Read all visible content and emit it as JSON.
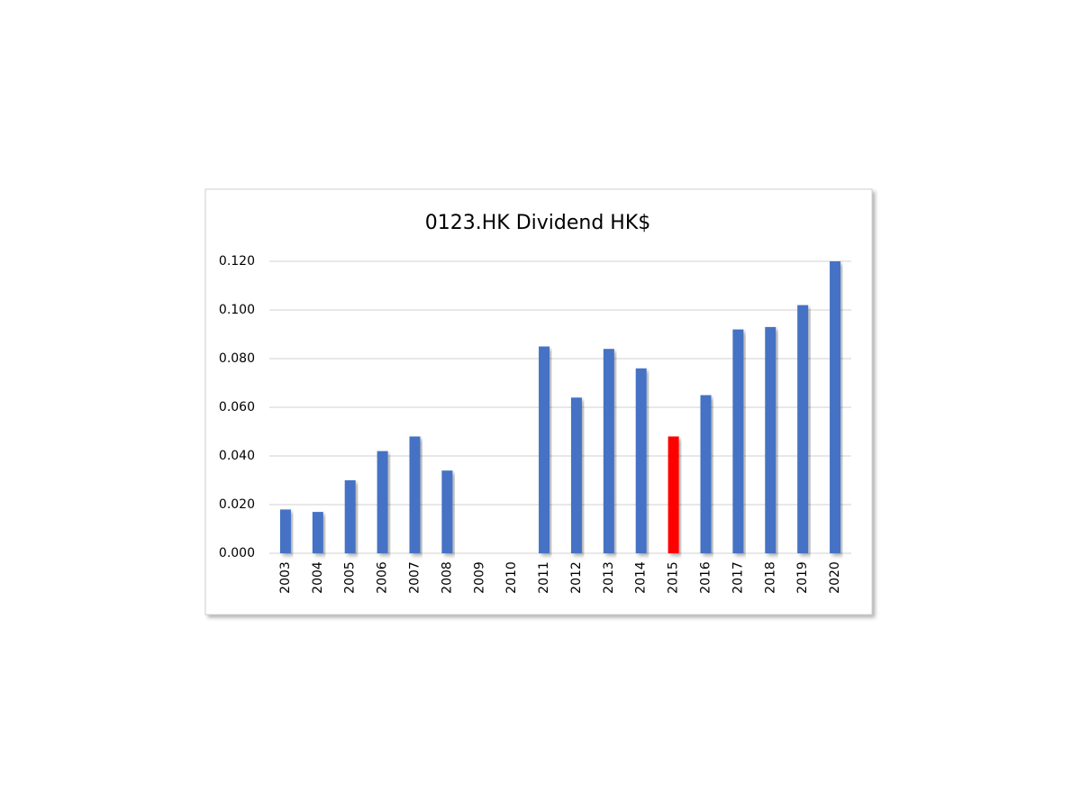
{
  "chart_data": {
    "type": "bar",
    "title": "0123.HK Dividend   HK$",
    "categories": [
      "2003",
      "2004",
      "2005",
      "2006",
      "2007",
      "2008",
      "2009",
      "2010",
      "2011",
      "2012",
      "2013",
      "2014",
      "2015",
      "2016",
      "2017",
      "2018",
      "2019",
      "2020"
    ],
    "values": [
      0.018,
      0.017,
      0.03,
      0.042,
      0.048,
      0.034,
      0,
      0,
      0.085,
      0.064,
      0.084,
      0.076,
      0.048,
      0.065,
      0.092,
      0.093,
      0.102,
      0.12
    ],
    "colors": [
      "#4472c4",
      "#4472c4",
      "#4472c4",
      "#4472c4",
      "#4472c4",
      "#4472c4",
      "#4472c4",
      "#4472c4",
      "#4472c4",
      "#4472c4",
      "#4472c4",
      "#4472c4",
      "#ff0000",
      "#4472c4",
      "#4472c4",
      "#4472c4",
      "#4472c4",
      "#4472c4"
    ],
    "ylim": [
      0,
      0.12
    ],
    "yticks": [
      {
        "value": 0,
        "label": "0.000"
      },
      {
        "value": 0.02,
        "label": "0.020"
      },
      {
        "value": 0.04,
        "label": "0.040"
      },
      {
        "value": 0.06,
        "label": "0.060"
      },
      {
        "value": 0.08,
        "label": "0.080"
      },
      {
        "value": 0.1,
        "label": "0.100"
      },
      {
        "value": 0.12,
        "label": "0.120"
      }
    ],
    "grid": true
  }
}
